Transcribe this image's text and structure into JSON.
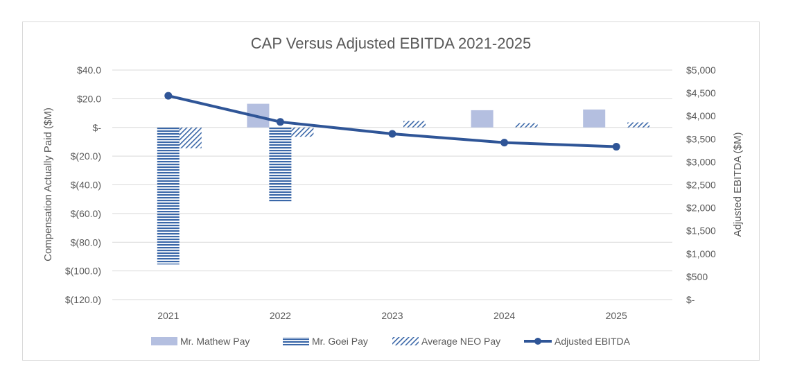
{
  "chart_data": {
    "type": "bar",
    "title": "CAP Versus Adjusted EBITDA 2021-2025",
    "categories": [
      "2021",
      "2022",
      "2023",
      "2024",
      "2025"
    ],
    "y_left": {
      "label": "Compensation Actually Paid ($M)",
      "range": [
        -120,
        40
      ],
      "ticks": [
        40,
        20,
        0,
        -20,
        -40,
        -60,
        -80,
        -100,
        -120
      ],
      "tick_labels": [
        "$40.0",
        "$20.0",
        "$-",
        "$(20.0)",
        "$(40.0)",
        "$(60.0)",
        "$(80.0)",
        "$(100.0)",
        "$(120.0)"
      ]
    },
    "y_right": {
      "label": "Adjusted EBITDA ($M)",
      "range": [
        0,
        5000
      ],
      "ticks": [
        5000,
        4500,
        4000,
        3500,
        3000,
        2500,
        2000,
        1500,
        1000,
        500,
        0
      ],
      "tick_labels": [
        "$5,000",
        "$4,500",
        "$4,000",
        "$3,500",
        "$3,000",
        "$2,500",
        "$2,000",
        "$1,500",
        "$1,000",
        "$500",
        "$-"
      ]
    },
    "grid": true,
    "legend_position": "bottom",
    "series": [
      {
        "name": "Mr. Mathew Pay",
        "kind": "bar",
        "axis": "left",
        "color": "#b4bfe0",
        "pattern": "solid",
        "values": [
          null,
          16.5,
          null,
          12.0,
          12.5
        ]
      },
      {
        "name": "Mr. Goei Pay",
        "kind": "bar",
        "axis": "left",
        "color": "#3a67a8",
        "pattern": "horizontal-stripes",
        "values": [
          -95.5,
          -52.0,
          null,
          null,
          null
        ]
      },
      {
        "name": "Average NEO Pay",
        "kind": "bar",
        "axis": "left",
        "color": "#3a67a8",
        "pattern": "diagonal-hatch",
        "values": [
          -14.5,
          -6.5,
          4.5,
          3.0,
          3.5
        ]
      },
      {
        "name": "Adjusted EBITDA",
        "kind": "line",
        "axis": "right",
        "color": "#2f5597",
        "values": [
          4440,
          3870,
          3610,
          3420,
          3330
        ]
      }
    ]
  }
}
